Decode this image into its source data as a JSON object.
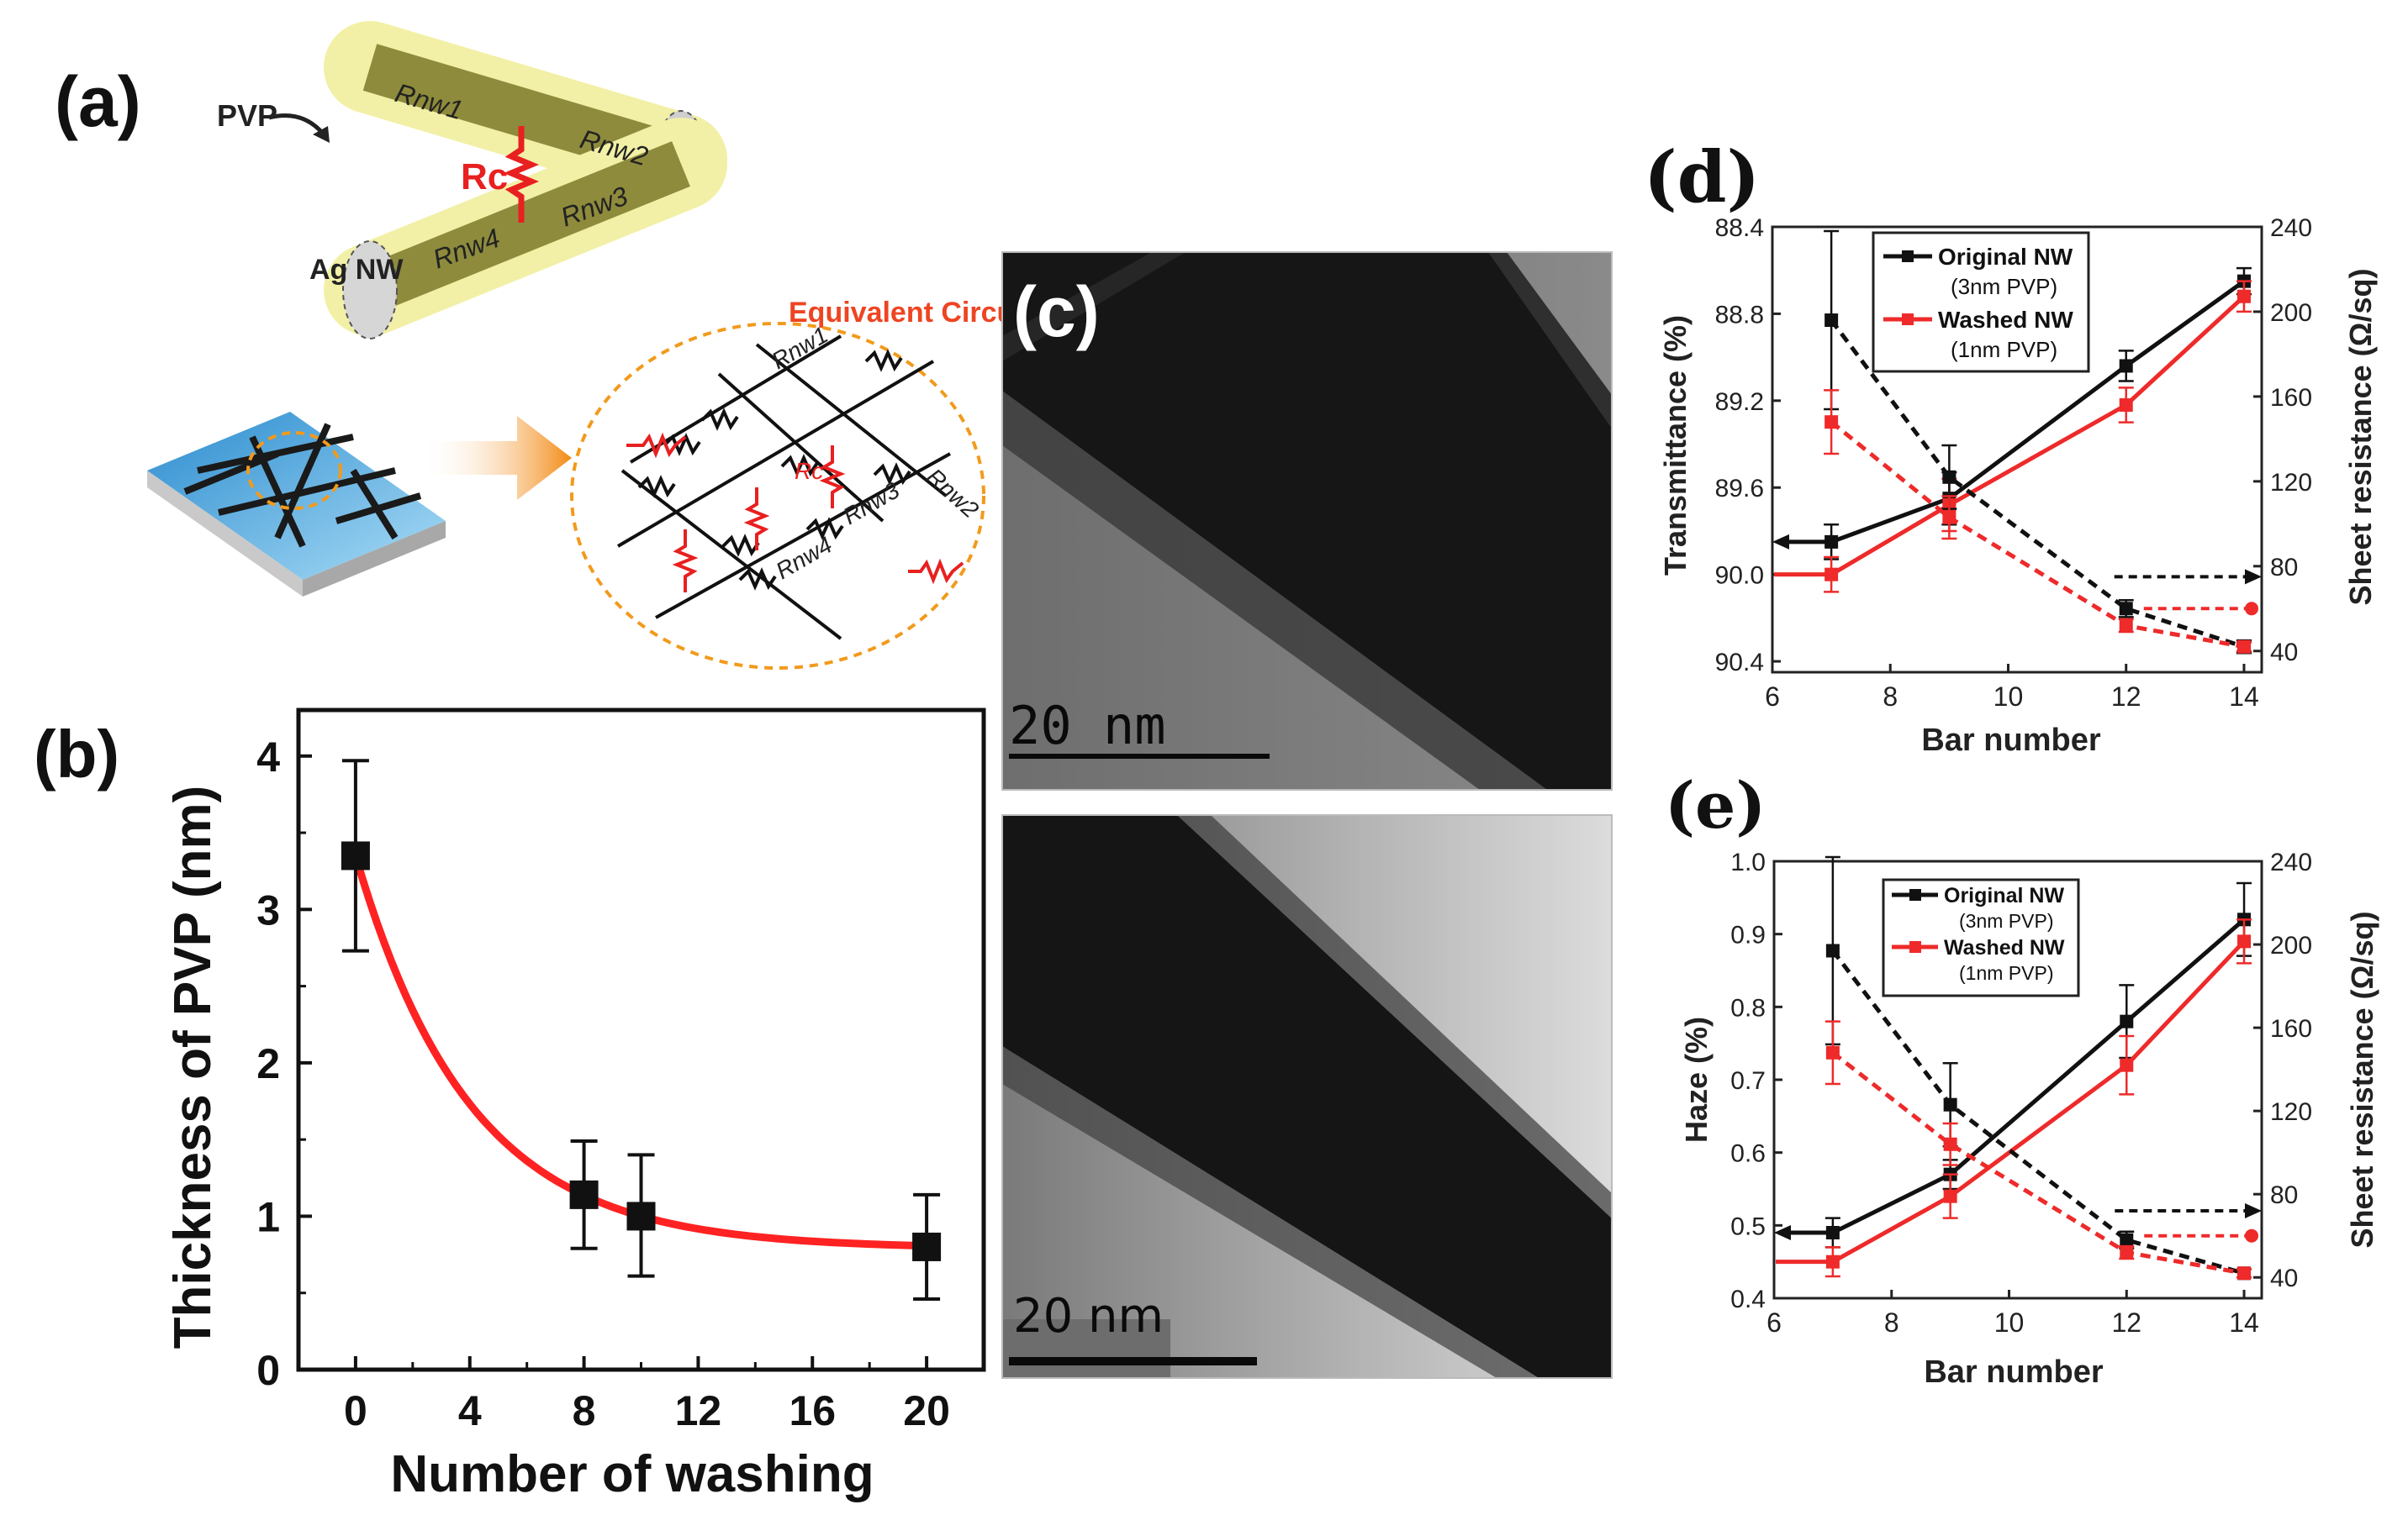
{
  "panel_labels": {
    "a": "(a)",
    "b": "(b)",
    "c": "(c)",
    "d": "(d)",
    "e": "(e)"
  },
  "schematic": {
    "pvp_label": "PVP",
    "ag_label": "Ag NW",
    "rc_label": "Rc",
    "rnw1": "Rnw1",
    "rnw2": "Rnw2",
    "rnw3": "Rnw3",
    "rnw4": "Rnw4",
    "equiv_title": "Equivalent Circuit"
  },
  "tem": {
    "scale_top": "20 nm",
    "scale_bottom": "20 nm"
  },
  "colors": {
    "black": "#111111",
    "red": "#ee2a2a",
    "fit": "#ff2222",
    "nw": "#8c8a3a",
    "pvp": "#eeee9a"
  },
  "chart_data": [
    {
      "id": "b",
      "type": "scatter",
      "xlabel": "Number of washing",
      "ylabel": "Thickness of PVP (nm)",
      "xlim": [
        -2,
        22
      ],
      "ylim": [
        0,
        4.3
      ],
      "xticks": [
        0,
        4,
        8,
        12,
        16,
        20
      ],
      "yticks": [
        0,
        1,
        2,
        3,
        4
      ],
      "points": [
        {
          "x": 0,
          "y": 3.35,
          "err_lo": 2.73,
          "err_hi": 3.97
        },
        {
          "x": 8,
          "y": 1.14,
          "err_lo": 0.79,
          "err_hi": 1.49
        },
        {
          "x": 10,
          "y": 1.0,
          "err_lo": 0.61,
          "err_hi": 1.4
        },
        {
          "x": 20,
          "y": 0.8,
          "err_lo": 0.46,
          "err_hi": 1.14
        }
      ],
      "fit": {
        "type": "exponential",
        "y0": 0.79,
        "A": 2.56,
        "tau": 4.0
      }
    },
    {
      "id": "d",
      "type": "line",
      "xlabel": "Bar number",
      "ylabel_left": "Transmittance (%)",
      "ylabel_right": "Sheet resistance (Ω/sq)",
      "xlim": [
        6,
        14.3
      ],
      "ylim_left": [
        88.4,
        90.45
      ],
      "y_left_inverted": true,
      "ylim_right": [
        30,
        240
      ],
      "xticks": [
        6,
        8,
        10,
        12,
        14
      ],
      "yticks_left": [
        88.4,
        88.8,
        89.2,
        89.6,
        90.0,
        90.4
      ],
      "yticks_right": [
        40,
        80,
        120,
        160,
        200,
        240
      ],
      "legend": [
        "Original NW",
        "(3nm PVP)",
        "Washed NW",
        "(1nm PVP)"
      ],
      "series": [
        {
          "name": "Original NW transmittance",
          "color": "black",
          "axis": "left",
          "style": "solid",
          "x": [
            7,
            9,
            12,
            14
          ],
          "y": [
            89.85,
            89.65,
            89.04,
            88.65
          ],
          "err": [
            0.08,
            0.12,
            0.07,
            0.06
          ]
        },
        {
          "name": "Washed NW transmittance",
          "color": "red",
          "axis": "left",
          "style": "solid",
          "x": [
            7,
            9,
            12,
            14
          ],
          "y": [
            90.0,
            89.68,
            89.22,
            88.72
          ],
          "err": [
            0.08,
            0.12,
            0.08,
            0.07
          ]
        },
        {
          "name": "Original NW sheet resistance",
          "color": "black",
          "axis": "right",
          "style": "dashed",
          "x": [
            7,
            9,
            12,
            14
          ],
          "y": [
            196,
            122,
            60,
            42
          ],
          "err": [
            42,
            15,
            4,
            3
          ]
        },
        {
          "name": "Washed NW sheet resistance",
          "color": "red",
          "axis": "right",
          "style": "dashed",
          "x": [
            7,
            9,
            12,
            14
          ],
          "y": [
            148,
            103,
            52,
            42
          ],
          "err": [
            15,
            10,
            3,
            2
          ]
        }
      ]
    },
    {
      "id": "e",
      "type": "line",
      "xlabel": "Bar number",
      "ylabel_left": "Haze (%)",
      "ylabel_right": "Sheet resistance (Ω/sq)",
      "xlim": [
        6,
        14.3
      ],
      "ylim_left": [
        0.4,
        1.0
      ],
      "ylim_right": [
        30,
        240
      ],
      "xticks": [
        6,
        8,
        10,
        12,
        14
      ],
      "yticks_left": [
        0.4,
        0.5,
        0.6,
        0.7,
        0.8,
        0.9,
        1.0
      ],
      "yticks_right": [
        40,
        80,
        120,
        160,
        200,
        240
      ],
      "legend": [
        "Original NW",
        "(3nm PVP)",
        "Washed NW",
        "(1nm PVP)"
      ],
      "series": [
        {
          "name": "Original NW haze",
          "color": "black",
          "axis": "left",
          "style": "solid",
          "x": [
            7,
            9,
            12,
            14
          ],
          "y": [
            0.49,
            0.57,
            0.78,
            0.92
          ],
          "err": [
            0.02,
            0.02,
            0.05,
            0.05
          ]
        },
        {
          "name": "Washed NW haze",
          "color": "red",
          "axis": "left",
          "style": "solid",
          "x": [
            7,
            9,
            12,
            14
          ],
          "y": [
            0.45,
            0.54,
            0.72,
            0.89
          ],
          "err": [
            0.02,
            0.03,
            0.04,
            0.03
          ]
        },
        {
          "name": "Original NW sheet resistance",
          "color": "black",
          "axis": "right",
          "style": "dashed",
          "x": [
            7,
            9,
            12,
            14
          ],
          "y": [
            197,
            123,
            58,
            42
          ],
          "err": [
            45,
            20,
            4,
            2
          ]
        },
        {
          "name": "Washed NW sheet resistance",
          "color": "red",
          "axis": "right",
          "style": "dashed",
          "x": [
            7,
            9,
            12,
            14
          ],
          "y": [
            148,
            104,
            52,
            42
          ],
          "err": [
            15,
            10,
            3,
            2
          ]
        }
      ]
    }
  ]
}
